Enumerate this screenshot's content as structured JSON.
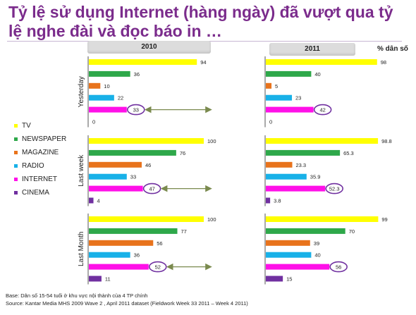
{
  "title": "Tỷ lệ sử dụng Internet  (hàng ngày) đã vượt qua tỷ lệ nghe đài và đọc báo in …",
  "unit_label": "% dân số",
  "colors": {
    "TV": "#ffff00",
    "NEWSPAPER": "#2ea84a",
    "MAGAZINE": "#e8731c",
    "RADIO": "#18b1e8",
    "INTERNET": "#ff10e8",
    "CINEMA": "#7030a0",
    "highlight": "#7030a0",
    "arrow": "#7a8a4e"
  },
  "legend": [
    "TV",
    "NEWSPAPER",
    "MAGAZINE",
    "RADIO",
    "INTERNET",
    "CINEMA"
  ],
  "footnotes": [
    "Base: Dân số 15-54 tuổi ở khu vực nội thành của 4 TP chính",
    "Source: Kantar Media MHS 2009 Wave 2 , April 2011 dataset (Fieldwork Week 33 2011 – Week 4 2011)"
  ],
  "chart_data": [
    {
      "type": "bar",
      "orientation": "horizontal",
      "title": "2010",
      "row_labels": [
        "Yesterday",
        "Last week",
        "Last Month"
      ],
      "categories": [
        "TV",
        "NEWSPAPER",
        "MAGAZINE",
        "RADIO",
        "INTERNET",
        "CINEMA"
      ],
      "series": [
        {
          "row": "Yesterday",
          "values": [
            "94",
            "36",
            "10",
            "22",
            "33",
            "0"
          ]
        },
        {
          "row": "Last week",
          "values": [
            "100",
            "76",
            "46",
            "33",
            "47",
            "4"
          ]
        },
        {
          "row": "Last Month",
          "values": [
            "100",
            "77",
            "56",
            "36",
            "52",
            "11"
          ]
        }
      ],
      "highlighted_category": "INTERNET",
      "xlim": [
        0,
        100
      ]
    },
    {
      "type": "bar",
      "orientation": "horizontal",
      "title": "2011",
      "row_labels": [
        "Yesterday",
        "Last week",
        "Last Month"
      ],
      "categories": [
        "TV",
        "NEWSPAPER",
        "MAGAZINE",
        "RADIO",
        "INTERNET",
        "CINEMA"
      ],
      "series": [
        {
          "row": "Yesterday",
          "values": [
            "98",
            "40",
            "5",
            "23",
            "42",
            "0"
          ]
        },
        {
          "row": "Last week",
          "values": [
            "98.8",
            "65.3",
            "23.3",
            "35.9",
            "52.3",
            "3.8"
          ]
        },
        {
          "row": "Last Month",
          "values": [
            "99",
            "70",
            "39",
            "40",
            "56",
            "15"
          ]
        }
      ],
      "highlighted_category": "INTERNET",
      "xlim": [
        0,
        100
      ]
    }
  ]
}
